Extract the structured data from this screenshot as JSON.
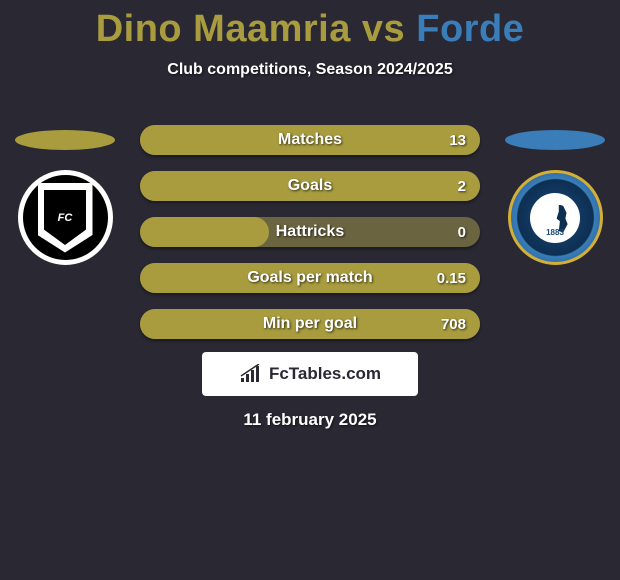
{
  "title": {
    "player1": "Dino Maamria",
    "vs": " vs ",
    "player2": "Forde",
    "player1_color": "#a89c3f",
    "player2_color": "#3a7db8"
  },
  "subtitle": "Club competitions, Season 2024/2025",
  "avatars": {
    "left_oval_color": "#a89c3f",
    "right_oval_color": "#3a7db8",
    "left_badge_text": "FC",
    "right_badge_year": "1883"
  },
  "stats": {
    "bar_fill_color": "#a89c3f",
    "bar_bg_color": "#6b6440",
    "rows": [
      {
        "label": "Matches",
        "value": "13",
        "fill_pct": 100
      },
      {
        "label": "Goals",
        "value": "2",
        "fill_pct": 100
      },
      {
        "label": "Hattricks",
        "value": "0",
        "fill_pct": 38
      },
      {
        "label": "Goals per match",
        "value": "0.15",
        "fill_pct": 100
      },
      {
        "label": "Min per goal",
        "value": "708",
        "fill_pct": 100
      }
    ]
  },
  "watermark": "FcTables.com",
  "date": "11 february 2025",
  "colors": {
    "background": "#2a2933",
    "text": "#ffffff"
  }
}
